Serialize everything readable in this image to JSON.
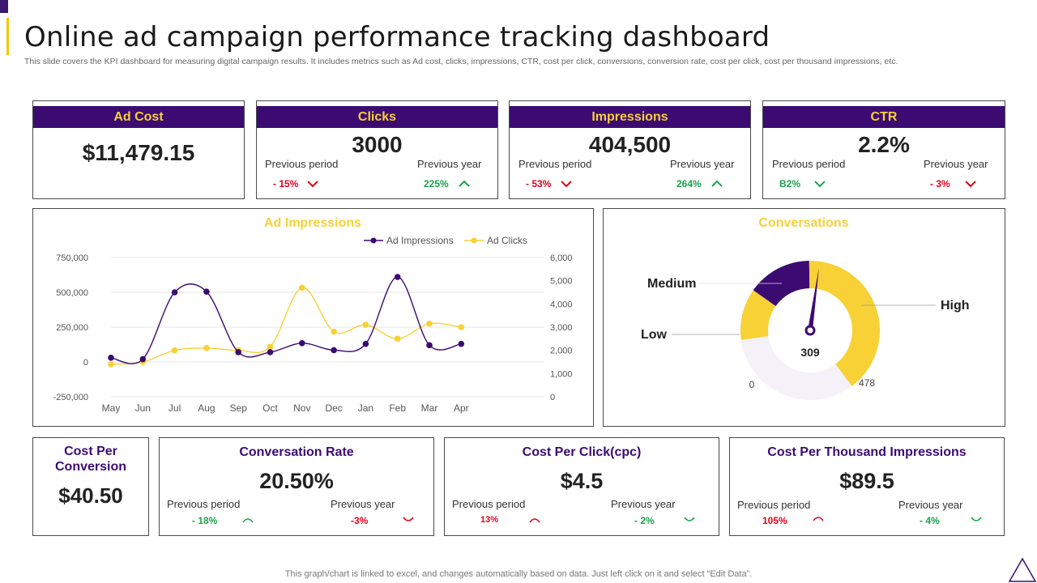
{
  "header": {
    "title": "Online ad campaign performance tracking dashboard",
    "description": "This slide covers the KPI dashboard for measuring digital campaign results. It includes metrics such as Ad cost, clicks, impressions, CTR, cost per click, conversions, conversion rate, cost per click, cost per thousand impressions, etc."
  },
  "kpis": {
    "ad_cost": {
      "title": "Ad Cost",
      "value": "$11,479.15"
    },
    "clicks": {
      "title": "Clicks",
      "value": "3000",
      "prev_period_label": "Previous period",
      "prev_period_value": "- 15%",
      "prev_year_label": "Previous year",
      "prev_year_value": "225%"
    },
    "impressions": {
      "title": "Impressions",
      "value": "404,500",
      "prev_period_label": "Previous period",
      "prev_period_value": "- 53%",
      "prev_year_label": "Previous year",
      "prev_year_value": "264%"
    },
    "ctr": {
      "title": "CTR",
      "value": "2.2%",
      "prev_period_label": "Previous period",
      "prev_period_value": "B2%",
      "prev_year_label": "Previous year",
      "prev_year_value": "- 3%"
    }
  },
  "bottom": {
    "cost_per_conversion": {
      "title_line1": "Cost Per",
      "title_line2": "Conversion",
      "value": "$40.50"
    },
    "conversion_rate": {
      "title": "Conversation Rate",
      "value": "20.50%",
      "prev_period_label": "Previous period",
      "prev_period_value": "- 18%",
      "prev_year_label": "Previous year",
      "prev_year_value": "-3%"
    },
    "cost_per_click": {
      "title": "Cost Per Click(cpc)",
      "value": "$4.5",
      "prev_period_label": "Previous period",
      "prev_period_value": "13%",
      "prev_year_label": "Previous year",
      "prev_year_value": "- 2%"
    },
    "cpm": {
      "title": "Cost Per Thousand Impressions",
      "value": "$89.5",
      "prev_period_label": "Previous period",
      "prev_period_value": "105%",
      "prev_year_label": "Previous year",
      "prev_year_value": "- 4%"
    }
  },
  "colors": {
    "purple": "#3c0b72",
    "yellow": "#f7d135",
    "red": "#e0001b",
    "green": "#1aa24a"
  },
  "chart_data": [
    {
      "type": "line",
      "title": "Ad Impressions",
      "categories": [
        "May",
        "Jun",
        "Jul",
        "Aug",
        "Sep",
        "Oct",
        "Nov",
        "Dec",
        "Jan",
        "Feb",
        "Mar",
        "Apr"
      ],
      "series": [
        {
          "name": "Ad Impressions",
          "axis": "left",
          "color": "#3c0b72",
          "values": [
            30000,
            20000,
            500000,
            505000,
            70000,
            70000,
            135000,
            85000,
            130000,
            610000,
            120000,
            130000
          ]
        },
        {
          "name": "Ad Clicks",
          "axis": "right",
          "color": "#f7d135",
          "values": [
            1400,
            1500,
            2000,
            2100,
            2000,
            2150,
            4700,
            2800,
            3100,
            2500,
            3150,
            3000
          ]
        }
      ],
      "y_left": {
        "range": [
          -250000,
          750000
        ],
        "ticks": [
          "750,000",
          "500,000",
          "250,000",
          "0",
          "-250,000"
        ]
      },
      "y_right": {
        "range": [
          0,
          6000
        ],
        "ticks": [
          "6,000",
          "5,000",
          "4,000",
          "3,000",
          "2,000",
          "1,000",
          "0"
        ]
      },
      "grid": true,
      "legend_position": "top-right"
    },
    {
      "type": "pie",
      "title": "Conversations",
      "subtype": "gauge",
      "value": 309,
      "min_label": "0",
      "max_label": "478",
      "value_label": "309",
      "segments": [
        {
          "name": "Low",
          "color": "#f7d135",
          "share": 0.12
        },
        {
          "name": "Medium",
          "color": "#3c0b72",
          "share": 0.15
        },
        {
          "name": "High",
          "color": "#f7d135",
          "share": 0.4
        },
        {
          "name": "",
          "color": "#f4f2f8",
          "share": 0.33
        }
      ]
    }
  ],
  "footer": {
    "note": "This graph/chart is linked to excel,  and changes automatically based on data. Just left click on it and select “Edit Data”."
  }
}
